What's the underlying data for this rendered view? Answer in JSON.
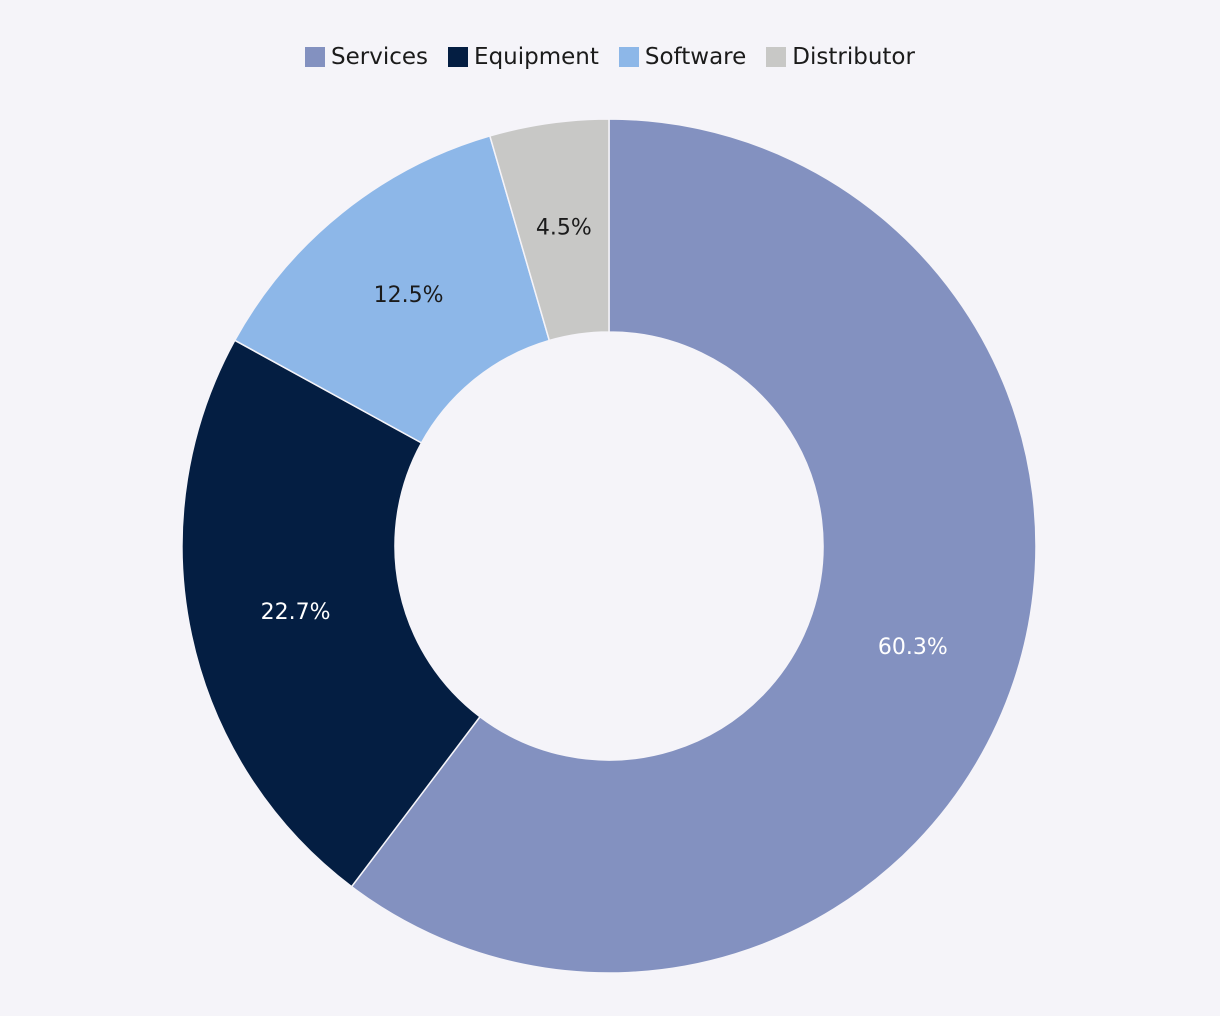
{
  "chart_data": {
    "type": "pie",
    "variant": "donut",
    "title": "",
    "legend_position": "top",
    "categories": [
      "Services",
      "Equipment",
      "Software",
      "Distributor"
    ],
    "values": [
      60.3,
      22.7,
      12.5,
      4.5
    ],
    "labels": [
      "60.3%",
      "22.7%",
      "12.5%",
      "4.5%"
    ],
    "colors": [
      "#8391c0",
      "#041e42",
      "#8db7e8",
      "#c8c8c6"
    ],
    "label_colors": [
      "#ffffff",
      "#ffffff",
      "#1b1b1b",
      "#1b1b1b"
    ]
  }
}
